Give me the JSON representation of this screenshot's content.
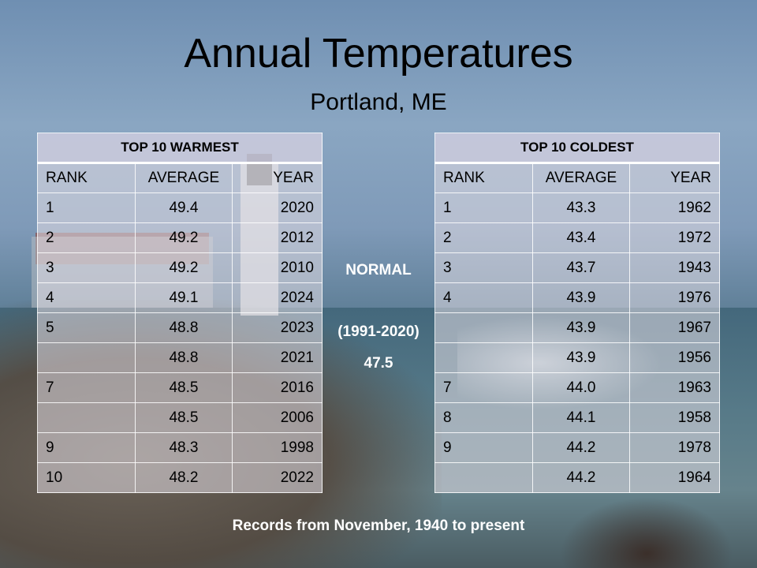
{
  "title": "Annual Temperatures",
  "subtitle": "Portland, ME",
  "warmest": {
    "heading": "TOP 10 WARMEST",
    "columns": [
      "RANK",
      "AVERAGE",
      "YEAR"
    ],
    "rows": [
      {
        "rank": "1",
        "average": "49.4",
        "year": "2020"
      },
      {
        "rank": "2",
        "average": "49.2",
        "year": "2012"
      },
      {
        "rank": "3",
        "average": "49.2",
        "year": "2010"
      },
      {
        "rank": "4",
        "average": "49.1",
        "year": "2024"
      },
      {
        "rank": "5",
        "average": "48.8",
        "year": "2023"
      },
      {
        "rank": "",
        "average": "48.8",
        "year": "2021"
      },
      {
        "rank": "7",
        "average": "48.5",
        "year": "2016"
      },
      {
        "rank": "",
        "average": "48.5",
        "year": "2006"
      },
      {
        "rank": "9",
        "average": "48.3",
        "year": "1998"
      },
      {
        "rank": "10",
        "average": "48.2",
        "year": "2022"
      }
    ]
  },
  "coldest": {
    "heading": "TOP 10 COLDEST",
    "columns": [
      "RANK",
      "AVERAGE",
      "YEAR"
    ],
    "rows": [
      {
        "rank": "1",
        "average": "43.3",
        "year": "1962"
      },
      {
        "rank": "2",
        "average": "43.4",
        "year": "1972"
      },
      {
        "rank": "3",
        "average": "43.7",
        "year": "1943"
      },
      {
        "rank": "4",
        "average": "43.9",
        "year": "1976"
      },
      {
        "rank": "",
        "average": "43.9",
        "year": "1967"
      },
      {
        "rank": "",
        "average": "43.9",
        "year": "1956"
      },
      {
        "rank": "7",
        "average": "44.0",
        "year": "1963"
      },
      {
        "rank": "8",
        "average": "44.1",
        "year": "1958"
      },
      {
        "rank": "9",
        "average": "44.2",
        "year": "1978"
      },
      {
        "rank": "",
        "average": "44.2",
        "year": "1964"
      }
    ]
  },
  "normal": {
    "label": "NORMAL",
    "period": "(1991-2020)",
    "value": "47.5"
  },
  "footer": "Records from November, 1940 to present"
}
